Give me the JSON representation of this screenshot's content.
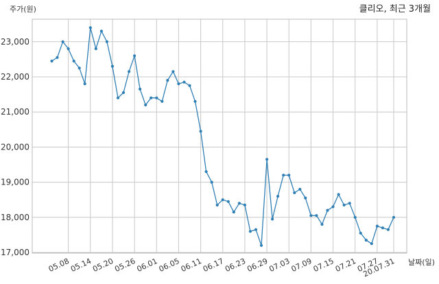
{
  "chart_data": {
    "type": "line",
    "title": "클리오, 최근 3개월",
    "ylabel": "주가(원)",
    "xlabel": "날짜(일)",
    "ylim": [
      17000,
      23500
    ],
    "yticks": [
      17000,
      18000,
      19000,
      20000,
      21000,
      22000,
      23000
    ],
    "ytick_labels": [
      "17,000",
      "18,000",
      "19,000",
      "20,000",
      "21,000",
      "22,000",
      "23,000"
    ],
    "xticks": [
      "05.08",
      "05.14",
      "05.20",
      "05.26",
      "06.01",
      "06.05",
      "06.11",
      "06.17",
      "06.23",
      "06.29",
      "07.03",
      "07.09",
      "07.15",
      "07.21",
      "07.27",
      "20.07.31"
    ],
    "xtick_index": [
      3,
      7,
      11,
      15,
      19,
      23,
      27,
      31,
      35,
      39,
      43,
      47,
      51,
      55,
      59,
      62
    ],
    "grid": true,
    "line_color": "#2f7fb5",
    "series": [
      {
        "values": [
          22450,
          22550,
          23000,
          22800,
          22450,
          22250,
          21800,
          23400,
          22800,
          23300,
          23000,
          22300,
          21400,
          21550,
          22150,
          22600,
          21650,
          21200,
          21400,
          21400,
          21300,
          21900,
          22150,
          21800,
          21850,
          21750,
          21300,
          20450,
          19300,
          19000,
          18350,
          18500,
          18450,
          18150,
          18400,
          18350,
          17600,
          17650,
          17200,
          19650,
          17950,
          18600,
          19200,
          19200,
          18700,
          18800,
          18550,
          18050,
          18050,
          17800,
          18200,
          18300,
          18650,
          18350,
          18400,
          18000,
          17550,
          17350,
          17250,
          17750,
          17700,
          17650,
          18000
        ]
      }
    ]
  }
}
